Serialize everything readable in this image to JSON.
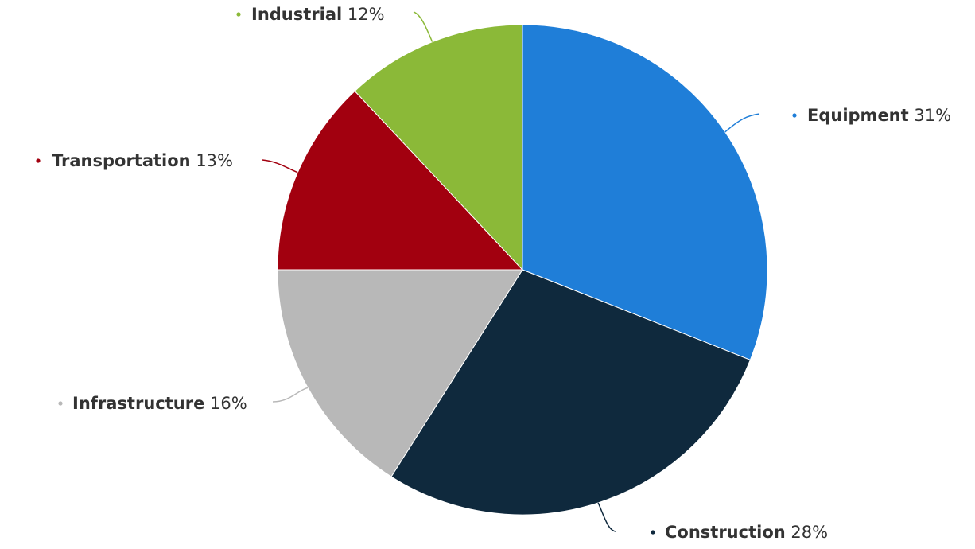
{
  "chart_data": {
    "type": "pie",
    "title": "",
    "slices": [
      {
        "label": "Equipment",
        "value": 31,
        "value_label": "31%",
        "color": "#1f7ed8"
      },
      {
        "label": "Construction",
        "value": 28,
        "value_label": "28%",
        "color": "#0f293d"
      },
      {
        "label": "Infrastructure",
        "value": 16,
        "value_label": "16%",
        "color": "#b8b8b8"
      },
      {
        "label": "Transportation",
        "value": 13,
        "value_label": "13%",
        "color": "#a2000f"
      },
      {
        "label": "Industrial",
        "value": 12,
        "value_label": "12%",
        "color": "#8bb938"
      }
    ],
    "start_angle_deg": 0,
    "direction": "clockwise",
    "legend": "none",
    "data_labels": "outside-with-connectors"
  }
}
